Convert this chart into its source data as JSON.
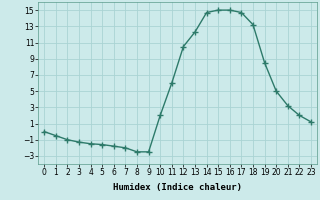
{
  "x": [
    0,
    1,
    2,
    3,
    4,
    5,
    6,
    7,
    8,
    9,
    10,
    11,
    12,
    13,
    14,
    15,
    16,
    17,
    18,
    19,
    20,
    21,
    22,
    23
  ],
  "y": [
    0.0,
    -0.5,
    -1.0,
    -1.3,
    -1.5,
    -1.6,
    -1.8,
    -2.0,
    -2.5,
    -2.5,
    2.0,
    6.0,
    10.5,
    12.3,
    14.7,
    15.0,
    15.0,
    14.7,
    13.2,
    8.5,
    5.0,
    3.2,
    2.0,
    1.2
  ],
  "line_color": "#2d7a6a",
  "marker": "+",
  "marker_size": 4,
  "bg_color": "#cceaea",
  "grid_color": "#aad4d4",
  "xlabel": "Humidex (Indice chaleur)",
  "ylim": [
    -4,
    16
  ],
  "xlim": [
    -0.5,
    23.5
  ],
  "yticks": [
    -3,
    -1,
    1,
    3,
    5,
    7,
    9,
    11,
    13,
    15
  ],
  "xticks": [
    0,
    1,
    2,
    3,
    4,
    5,
    6,
    7,
    8,
    9,
    10,
    11,
    12,
    13,
    14,
    15,
    16,
    17,
    18,
    19,
    20,
    21,
    22,
    23
  ],
  "label_fontsize": 6.5,
  "tick_fontsize": 5.5,
  "linewidth": 1.0,
  "marker_linewidth": 1.0
}
